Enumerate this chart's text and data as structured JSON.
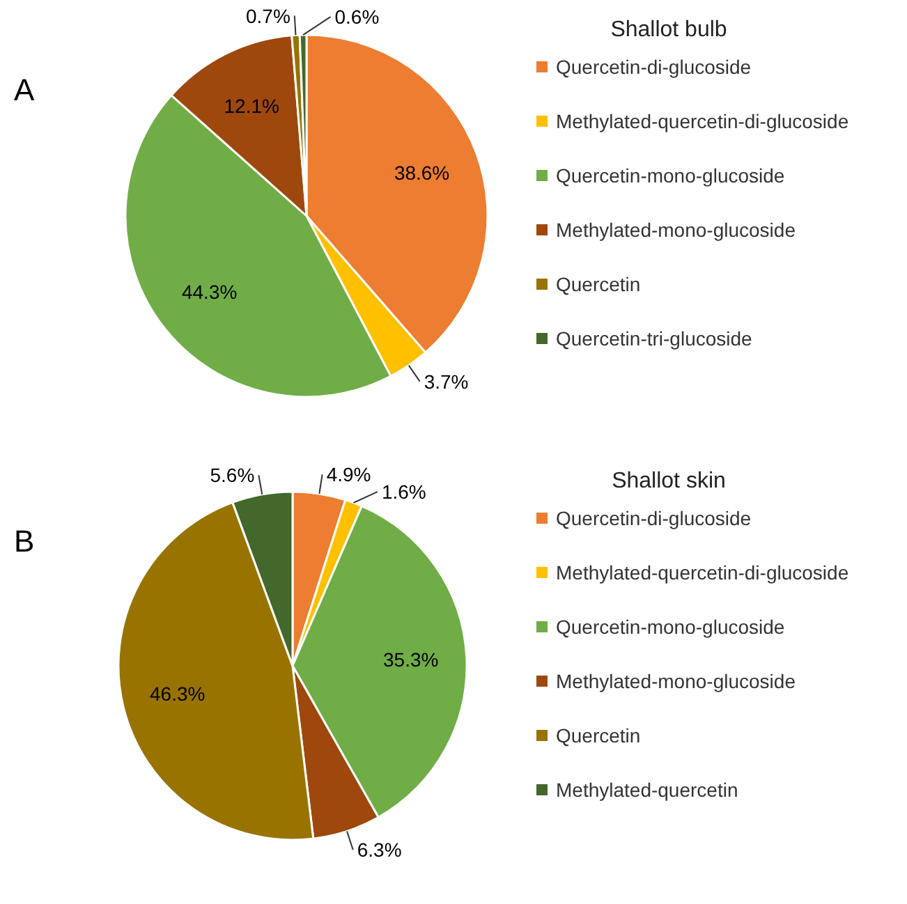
{
  "chart_data": [
    {
      "type": "pie",
      "title": "Shallot bulb",
      "annotations": [
        "A"
      ],
      "legend": "right",
      "categories": [
        "Quercetin-di-glucoside",
        "Methylated-quercetin-di-glucoside",
        "Quercetin-mono-glucoside",
        "Methylated-mono-glucoside",
        "Quercetin",
        "Quercetin-tri-glucoside"
      ],
      "values": [
        38.6,
        3.7,
        44.3,
        12.1,
        0.7,
        0.6
      ],
      "value_labels": [
        "38.6%",
        "3.7%",
        "44.3%",
        "12.1%",
        "0.7%",
        "0.6%"
      ],
      "colors": [
        "#ed7d31",
        "#ffc000",
        "#70ad47",
        "#9e480e",
        "#997300",
        "#43682b"
      ]
    },
    {
      "type": "pie",
      "title": "Shallot skin",
      "annotations": [
        "B"
      ],
      "legend": "right",
      "categories": [
        "Quercetin-di-glucoside",
        "Methylated-quercetin-di-glucoside",
        "Quercetin-mono-glucoside",
        "Methylated-mono-glucoside",
        "Quercetin",
        "Methylated-quercetin"
      ],
      "values": [
        4.9,
        1.6,
        35.3,
        6.3,
        46.3,
        5.6
      ],
      "value_labels": [
        "4.9%",
        "1.6%",
        "35.3%",
        "6.3%",
        "46.3%",
        "5.6%"
      ],
      "colors": [
        "#ed7d31",
        "#ffc000",
        "#70ad47",
        "#9e480e",
        "#997300",
        "#43682b"
      ]
    }
  ]
}
